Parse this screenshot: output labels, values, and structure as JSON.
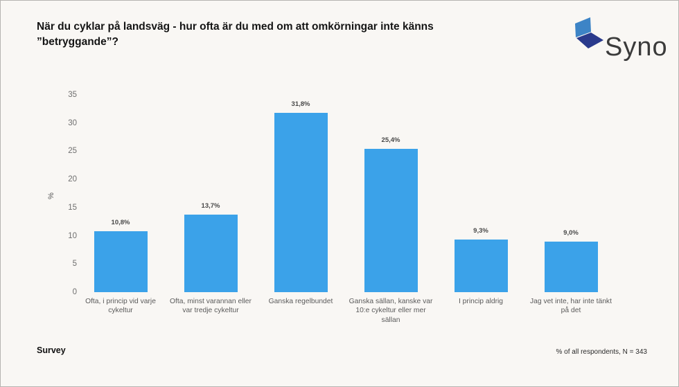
{
  "title": "När du cyklar på landsväg - hur ofta är du med om att omkörningar inte känns ”betryggande”?",
  "logo": {
    "text": "Syno",
    "colors": {
      "light_blue": "#3d84c6",
      "dark_blue": "#2a3a8c",
      "text": "#3b3b3b"
    }
  },
  "footer": {
    "left": "Survey",
    "right": "% of all respondents, N = 343"
  },
  "chart_data": {
    "type": "bar",
    "title": "När du cyklar på landsväg - hur ofta är du med om att omkörningar inte känns ”betryggande”?",
    "categories": [
      "Ofta, i princip vid varje cykeltur",
      "Ofta, minst varannan eller var tredje cykeltur",
      "Ganska regelbundet",
      "Ganska sällan, kanske var 10:e cykeltur eller mer sällan",
      "I princip aldrig",
      "Jag vet inte, har inte tänkt på det"
    ],
    "values": [
      10.8,
      13.7,
      31.8,
      25.4,
      9.3,
      9.0
    ],
    "value_labels": [
      "10,8%",
      "13,7%",
      "31,8%",
      "25,4%",
      "9,3%",
      "9,0%"
    ],
    "xlabel": "",
    "ylabel": "%",
    "ylim": [
      0,
      35
    ],
    "yticks": [
      0,
      5,
      10,
      15,
      20,
      25,
      30,
      35
    ],
    "grid": false,
    "legend": "none",
    "bar_color": "#3ba2e9",
    "footnote": "% of all respondents, N = 343"
  }
}
